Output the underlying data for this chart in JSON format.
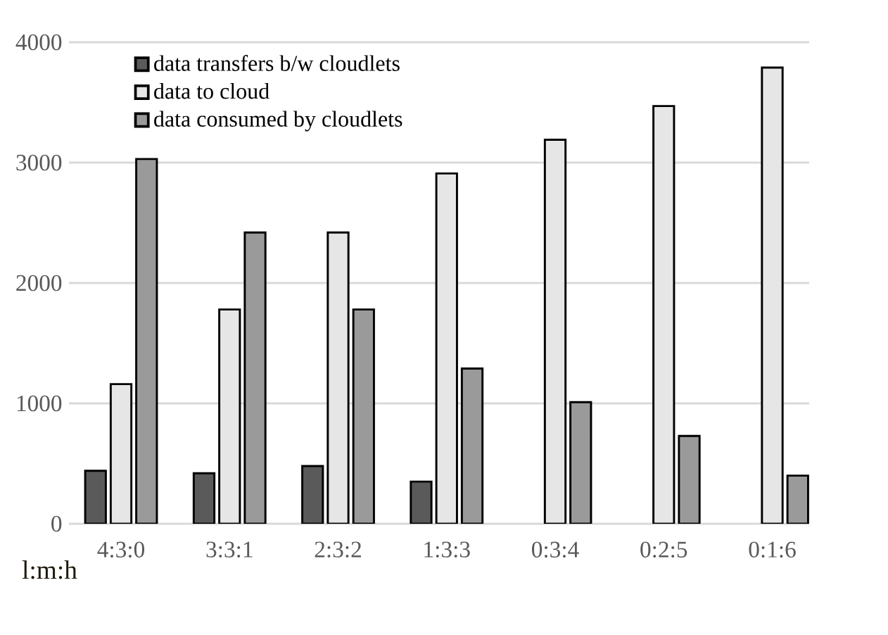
{
  "chart_data": {
    "type": "bar",
    "xlabel": "l:m:h",
    "categories": [
      "4:3:0",
      "3:3:1",
      "2:3:2",
      "1:3:3",
      "0:3:4",
      "0:2:5",
      "0:1:6"
    ],
    "series": [
      {
        "name": "data transfers b/w cloudlets",
        "color": "#5a5a5a",
        "values": [
          440,
          420,
          480,
          350,
          null,
          null,
          null
        ]
      },
      {
        "name": "data to cloud",
        "color": "#e6e6e6",
        "values": [
          1160,
          1780,
          2420,
          2910,
          3190,
          3470,
          3790
        ]
      },
      {
        "name": "data consumed by cloudlets",
        "color": "#9a9a9a",
        "values": [
          3030,
          2420,
          1780,
          1290,
          1010,
          730,
          400
        ]
      }
    ],
    "ylim": [
      0,
      4000
    ],
    "yticks": [
      0,
      1000,
      2000,
      3000,
      4000
    ],
    "grid": "y",
    "legend": "top"
  }
}
